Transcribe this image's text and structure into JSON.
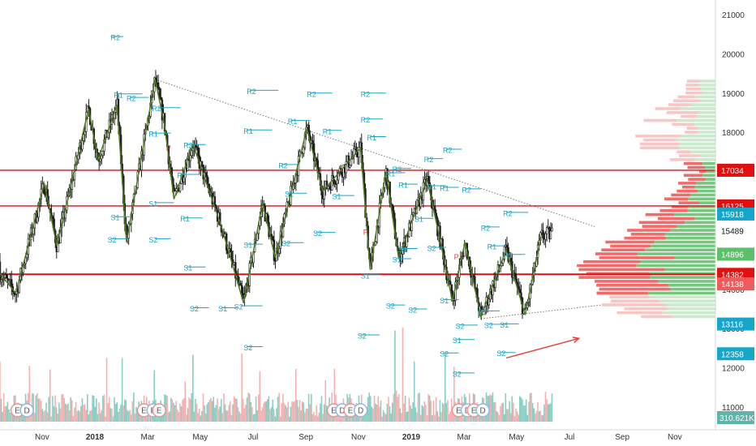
{
  "chart_data": {
    "type": "candlestick",
    "colors": {
      "up": "#1e1e1e",
      "down": "#1e1e1e",
      "zigzag": "#4e7a1f",
      "pivot": "#17a6c9",
      "hline": "#e01010",
      "vol_up": "#76c7ba",
      "vol_down": "#f2a3a3",
      "vp_buy": "#67c16f",
      "vp_sell": "#ef5b5b",
      "axis_text": "#333333",
      "event_red": "#ef8f8f",
      "event_blue": "#8fb8e8"
    },
    "ylim": [
      10500,
      21600
    ],
    "y_ticks": [
      11000,
      12000,
      13000,
      14000,
      15000,
      16000,
      17000,
      18000,
      19000,
      20000,
      21000
    ],
    "x_ticks": [
      {
        "label": "Nov",
        "t": 2017.833
      },
      {
        "label": "2018",
        "t": 2018.0
      },
      {
        "label": "Mar",
        "t": 2018.167
      },
      {
        "label": "May",
        "t": 2018.333
      },
      {
        "label": "Jul",
        "t": 2018.5
      },
      {
        "label": "Sep",
        "t": 2018.667
      },
      {
        "label": "Nov",
        "t": 2018.833
      },
      {
        "label": "2019",
        "t": 2019.0
      },
      {
        "label": "Mar",
        "t": 2019.167
      },
      {
        "label": "May",
        "t": 2019.333
      },
      {
        "label": "Jul",
        "t": 2019.5
      },
      {
        "label": "Sep",
        "t": 2019.667
      },
      {
        "label": "Nov",
        "t": 2019.833
      }
    ],
    "price_tags": [
      {
        "label": "17034",
        "value": 17034,
        "color": "#e01010"
      },
      {
        "label": "16125",
        "value": 16125,
        "color": "#e01010"
      },
      {
        "label": "15918",
        "value": 15918,
        "color": "#17a6c9"
      },
      {
        "label": "15489",
        "value": 15489,
        "color": "#ffffff"
      },
      {
        "label": "14896",
        "value": 14896,
        "color": "#5cbf6a"
      },
      {
        "label": "14382",
        "value": 14382,
        "color": "#e01010"
      },
      {
        "label": "14138",
        "value": 14138,
        "color": "#ef5b5b"
      },
      {
        "label": "13116",
        "value": 13116,
        "color": "#17a6c9"
      },
      {
        "label": "12358",
        "value": 12358,
        "color": "#17a6c9"
      }
    ],
    "volume_tag": "310.621K",
    "horizontal_lines": [
      17034,
      16125,
      14382
    ],
    "zigzag": [
      [
        2017.67,
        14700
      ],
      [
        2017.75,
        13900
      ],
      [
        2017.84,
        16700
      ],
      [
        2017.88,
        15100
      ],
      [
        2017.98,
        18600
      ],
      [
        2018.01,
        17300
      ],
      [
        2018.07,
        18700
      ],
      [
        2018.1,
        15200
      ],
      [
        2018.19,
        19350
      ],
      [
        2018.22,
        18200
      ],
      [
        2018.25,
        16300
      ],
      [
        2018.31,
        17700
      ],
      [
        2018.4,
        15600
      ],
      [
        2018.47,
        13650
      ],
      [
        2018.53,
        16200
      ],
      [
        2018.57,
        14800
      ],
      [
        2018.67,
        18100
      ],
      [
        2018.72,
        16500
      ],
      [
        2018.84,
        17600
      ],
      [
        2018.87,
        14500
      ],
      [
        2018.92,
        17000
      ],
      [
        2018.96,
        14800
      ],
      [
        2019.05,
        16800
      ],
      [
        2019.09,
        15300
      ],
      [
        2019.13,
        13700
      ],
      [
        2019.17,
        15200
      ],
      [
        2019.22,
        13300
      ],
      [
        2019.3,
        15000
      ],
      [
        2019.36,
        13350
      ],
      [
        2019.41,
        15350
      ]
    ],
    "trendlines": [
      {
        "from": [
          2018.19,
          19350
        ],
        "to": [
          2019.58,
          15600
        ],
        "style": "dotted"
      },
      {
        "from": [
          2019.22,
          13250
        ],
        "to": [
          2019.6,
          13600
        ],
        "style": "dotted"
      }
    ],
    "arrow": {
      "from": [
        2019.3,
        12250
      ],
      "to": [
        2019.53,
        12750
      ]
    },
    "pivot_labels": [
      {
        "text": "R2",
        "t": 2018.05,
        "v": 20430
      },
      {
        "text": "R1",
        "t": 2018.06,
        "v": 18970
      },
      {
        "text": "R2",
        "t": 2018.1,
        "v": 18880
      },
      {
        "text": "R2",
        "t": 2018.18,
        "v": 18620
      },
      {
        "text": "R1",
        "t": 2018.17,
        "v": 17970
      },
      {
        "text": "R2",
        "t": 2018.28,
        "v": 17680
      },
      {
        "text": "R1",
        "t": 2018.26,
        "v": 16920
      },
      {
        "text": "S1",
        "t": 2018.05,
        "v": 15840
      },
      {
        "text": "S1",
        "t": 2018.17,
        "v": 16200
      },
      {
        "text": "R1",
        "t": 2018.27,
        "v": 15810
      },
      {
        "text": "S2",
        "t": 2018.04,
        "v": 15280
      },
      {
        "text": "S2",
        "t": 2018.17,
        "v": 15280
      },
      {
        "text": "S1",
        "t": 2018.28,
        "v": 14560
      },
      {
        "text": "S2",
        "t": 2018.3,
        "v": 13520
      },
      {
        "text": "S1",
        "t": 2018.39,
        "v": 13520
      },
      {
        "text": "S2",
        "t": 2018.44,
        "v": 13570
      },
      {
        "text": "S2",
        "t": 2018.47,
        "v": 12530
      },
      {
        "text": "R2",
        "t": 2018.48,
        "v": 19060
      },
      {
        "text": "R1",
        "t": 2018.47,
        "v": 18050
      },
      {
        "text": "R2",
        "t": 2018.58,
        "v": 17170
      },
      {
        "text": "S1",
        "t": 2018.47,
        "v": 15140
      },
      {
        "text": "S2",
        "t": 2018.59,
        "v": 15180
      },
      {
        "text": "R1",
        "t": 2018.61,
        "v": 18290
      },
      {
        "text": "S1",
        "t": 2018.6,
        "v": 16440
      },
      {
        "text": "R2",
        "t": 2018.67,
        "v": 18990
      },
      {
        "text": "R1",
        "t": 2018.72,
        "v": 18040
      },
      {
        "text": "S2",
        "t": 2018.69,
        "v": 15440
      },
      {
        "text": "S1",
        "t": 2018.75,
        "v": 16380
      },
      {
        "text": "R2",
        "t": 2018.84,
        "v": 18990
      },
      {
        "text": "R2",
        "t": 2018.84,
        "v": 18330
      },
      {
        "text": "R1",
        "t": 2018.86,
        "v": 17880
      },
      {
        "text": "S1",
        "t": 2018.84,
        "v": 14360
      },
      {
        "text": "S2",
        "t": 2018.83,
        "v": 12830
      },
      {
        "text": "S2",
        "t": 2018.92,
        "v": 13590
      },
      {
        "text": "R1",
        "t": 2018.92,
        "v": 16960
      },
      {
        "text": "R2",
        "t": 2018.94,
        "v": 17070
      },
      {
        "text": "R1",
        "t": 2018.96,
        "v": 16670
      },
      {
        "text": "S1",
        "t": 2018.94,
        "v": 14770
      },
      {
        "text": "S1",
        "t": 2018.96,
        "v": 15030
      },
      {
        "text": "S2",
        "t": 2018.99,
        "v": 13490
      },
      {
        "text": "S1",
        "t": 2019.01,
        "v": 15800
      },
      {
        "text": "S2",
        "t": 2019.05,
        "v": 15060
      },
      {
        "text": "R2",
        "t": 2019.04,
        "v": 17320
      },
      {
        "text": "R2",
        "t": 2019.1,
        "v": 17560
      },
      {
        "text": "R1",
        "t": 2019.05,
        "v": 16630
      },
      {
        "text": "R1",
        "t": 2019.09,
        "v": 16590
      },
      {
        "text": "R2",
        "t": 2019.16,
        "v": 16550
      },
      {
        "text": "S1",
        "t": 2019.09,
        "v": 13730
      },
      {
        "text": "S2",
        "t": 2019.09,
        "v": 12370
      },
      {
        "text": "S1",
        "t": 2019.13,
        "v": 12710
      },
      {
        "text": "S2",
        "t": 2019.14,
        "v": 13080
      },
      {
        "text": "S2",
        "t": 2019.13,
        "v": 11860
      },
      {
        "text": "R2",
        "t": 2019.22,
        "v": 15580
      },
      {
        "text": "R1",
        "t": 2019.24,
        "v": 15100
      },
      {
        "text": "R1",
        "t": 2019.29,
        "v": 14880
      },
      {
        "text": "R2",
        "t": 2019.29,
        "v": 15950
      },
      {
        "text": "S1",
        "t": 2019.21,
        "v": 13440
      },
      {
        "text": "S2",
        "t": 2019.23,
        "v": 13100
      },
      {
        "text": "S1",
        "t": 2019.28,
        "v": 13110
      },
      {
        "text": "S2",
        "t": 2019.27,
        "v": 12380
      }
    ],
    "pivot_lines": [
      [
        2018.05,
        2018.09,
        20440
      ],
      [
        2018.07,
        2018.15,
        18980
      ],
      [
        2018.11,
        2018.17,
        18890
      ],
      [
        2018.2,
        2018.27,
        18630
      ],
      [
        2018.18,
        2018.24,
        17980
      ],
      [
        2018.29,
        2018.35,
        17690
      ],
      [
        2018.27,
        2018.33,
        16930
      ],
      [
        2018.06,
        2018.11,
        15850
      ],
      [
        2018.19,
        2018.25,
        16210
      ],
      [
        2018.28,
        2018.34,
        15820
      ],
      [
        2018.05,
        2018.1,
        15290
      ],
      [
        2018.19,
        2018.24,
        15290
      ],
      [
        2018.29,
        2018.35,
        14570
      ],
      [
        2018.31,
        2018.36,
        13530
      ],
      [
        2018.4,
        2018.45,
        13530
      ],
      [
        2018.46,
        2018.53,
        13580
      ],
      [
        2018.48,
        2018.53,
        12540
      ],
      [
        2018.49,
        2018.58,
        19070
      ],
      [
        2018.48,
        2018.56,
        18060
      ],
      [
        2018.59,
        2018.64,
        17180
      ],
      [
        2018.48,
        2018.53,
        15150
      ],
      [
        2018.6,
        2018.66,
        15190
      ],
      [
        2018.62,
        2018.68,
        18300
      ],
      [
        2018.61,
        2018.67,
        16450
      ],
      [
        2018.68,
        2018.75,
        19000
      ],
      [
        2018.73,
        2018.78,
        18050
      ],
      [
        2018.7,
        2018.76,
        15450
      ],
      [
        2018.76,
        2018.82,
        16390
      ],
      [
        2018.85,
        2018.92,
        19000
      ],
      [
        2018.85,
        2018.91,
        18340
      ],
      [
        2018.87,
        2018.92,
        17890
      ],
      [
        2018.85,
        2018.9,
        14370
      ],
      [
        2018.84,
        2018.9,
        12840
      ],
      [
        2018.93,
        2018.98,
        13600
      ],
      [
        2018.93,
        2018.98,
        16970
      ],
      [
        2018.95,
        2019.0,
        17080
      ],
      [
        2018.97,
        2019.02,
        16680
      ],
      [
        2018.95,
        2019.0,
        14780
      ],
      [
        2018.97,
        2019.02,
        15040
      ],
      [
        2019.0,
        2019.05,
        13500
      ],
      [
        2019.02,
        2019.07,
        15810
      ],
      [
        2019.06,
        2019.11,
        15070
      ],
      [
        2019.05,
        2019.1,
        17330
      ],
      [
        2019.11,
        2019.16,
        17570
      ],
      [
        2019.06,
        2019.11,
        16640
      ],
      [
        2019.1,
        2019.15,
        16600
      ],
      [
        2019.17,
        2019.22,
        16560
      ],
      [
        2019.1,
        2019.15,
        13740
      ],
      [
        2019.1,
        2019.15,
        12380
      ],
      [
        2019.14,
        2019.2,
        12720
      ],
      [
        2019.15,
        2019.21,
        13090
      ],
      [
        2019.14,
        2019.2,
        11870
      ],
      [
        2019.23,
        2019.28,
        15590
      ],
      [
        2019.25,
        2019.3,
        15110
      ],
      [
        2019.3,
        2019.36,
        14890
      ],
      [
        2019.3,
        2019.37,
        15960
      ],
      [
        2019.22,
        2019.28,
        13450
      ],
      [
        2019.24,
        2019.3,
        13110
      ],
      [
        2019.29,
        2019.34,
        13120
      ],
      [
        2019.28,
        2019.33,
        12390
      ]
    ],
    "event_markers": [
      {
        "text": "E",
        "t": 2017.755,
        "kind": "red"
      },
      {
        "text": "D",
        "t": 2017.785,
        "kind": "blue"
      },
      {
        "text": "E",
        "t": 2018.155,
        "kind": "red"
      },
      {
        "text": "D",
        "t": 2018.185,
        "kind": "blue"
      },
      {
        "text": "E",
        "t": 2018.203,
        "kind": "red"
      },
      {
        "text": "E",
        "t": 2018.755,
        "kind": "red"
      },
      {
        "text": "D",
        "t": 2018.782,
        "kind": "blue"
      },
      {
        "text": "E",
        "t": 2018.808,
        "kind": "red"
      },
      {
        "text": "D",
        "t": 2018.84,
        "kind": "blue"
      },
      {
        "text": "E",
        "t": 2019.15,
        "kind": "red"
      },
      {
        "text": "D",
        "t": 2019.178,
        "kind": "blue"
      },
      {
        "text": "E",
        "t": 2019.198,
        "kind": "red"
      },
      {
        "text": "D",
        "t": 2019.226,
        "kind": "blue"
      }
    ],
    "p_markers": [
      {
        "text": "P",
        "t": 2018.225,
        "v": 17620
      },
      {
        "text": "P",
        "t": 2018.848,
        "v": 15470
      },
      {
        "text": "P",
        "t": 2019.135,
        "v": 14840
      }
    ]
  }
}
